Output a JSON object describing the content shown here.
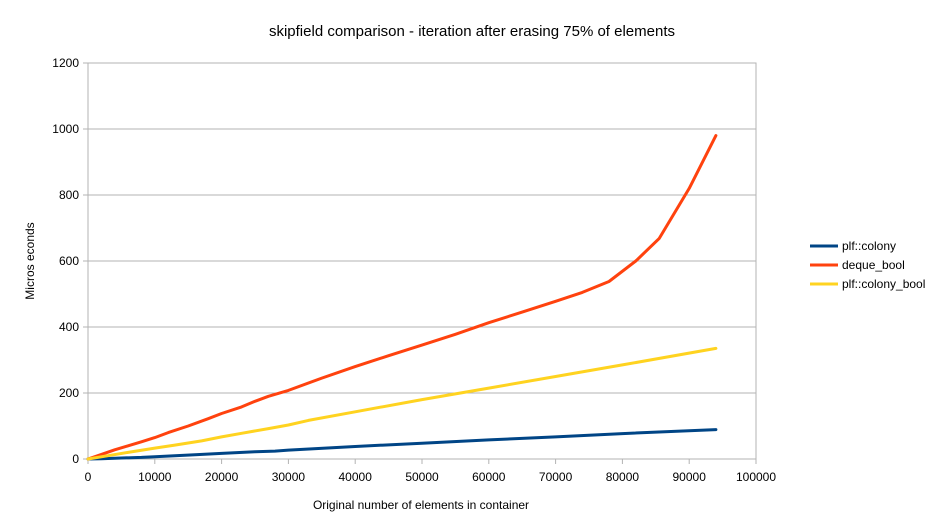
{
  "chart_data": {
    "type": "line",
    "title": "skipfield comparison - iteration after erasing 75% of elements",
    "xlabel": "Original number of elements in container",
    "ylabel": "Micros econds",
    "xlim": [
      0,
      100000
    ],
    "ylim": [
      0,
      1200
    ],
    "xticks": [
      0,
      10000,
      20000,
      30000,
      40000,
      50000,
      60000,
      70000,
      80000,
      90000,
      100000
    ],
    "yticks": [
      0,
      200,
      400,
      600,
      800,
      1000,
      1200
    ],
    "grid": "horizontal",
    "legend_position": "right",
    "series": [
      {
        "name": "plf::colony",
        "color": "#004586",
        "x": [
          0,
          2000,
          5000,
          8000,
          10000,
          13000,
          16000,
          20000,
          25000,
          28000,
          30000,
          40000,
          50000,
          60000,
          70000,
          80000,
          94000
        ],
        "y": [
          0,
          1,
          3,
          5,
          7,
          10,
          13,
          17,
          22,
          24,
          27,
          38,
          48,
          58,
          67,
          77,
          89
        ]
      },
      {
        "name": "deque_bool",
        "color": "#ff420e",
        "x": [
          0,
          2000,
          4000,
          6000,
          8000,
          10000,
          12000,
          15000,
          18000,
          20000,
          23000,
          25000,
          27000,
          30000,
          35000,
          40000,
          45000,
          50000,
          55000,
          60000,
          65000,
          70000,
          74000,
          78000,
          82000,
          85500,
          90000,
          94000
        ],
        "y": [
          0,
          14,
          28,
          40,
          52,
          65,
          80,
          100,
          122,
          138,
          158,
          175,
          190,
          208,
          245,
          280,
          313,
          345,
          378,
          413,
          445,
          478,
          505,
          538,
          600,
          668,
          820,
          980
        ]
      },
      {
        "name": "plf::colony_bool",
        "color": "#ffd320",
        "x": [
          0,
          3000,
          6000,
          10000,
          13000,
          17000,
          20000,
          23000,
          27000,
          30000,
          33000,
          40000,
          50000,
          60000,
          70000,
          80000,
          94000
        ],
        "y": [
          0,
          10,
          20,
          33,
          42,
          55,
          67,
          78,
          92,
          103,
          117,
          143,
          180,
          215,
          250,
          285,
          335
        ]
      }
    ]
  }
}
